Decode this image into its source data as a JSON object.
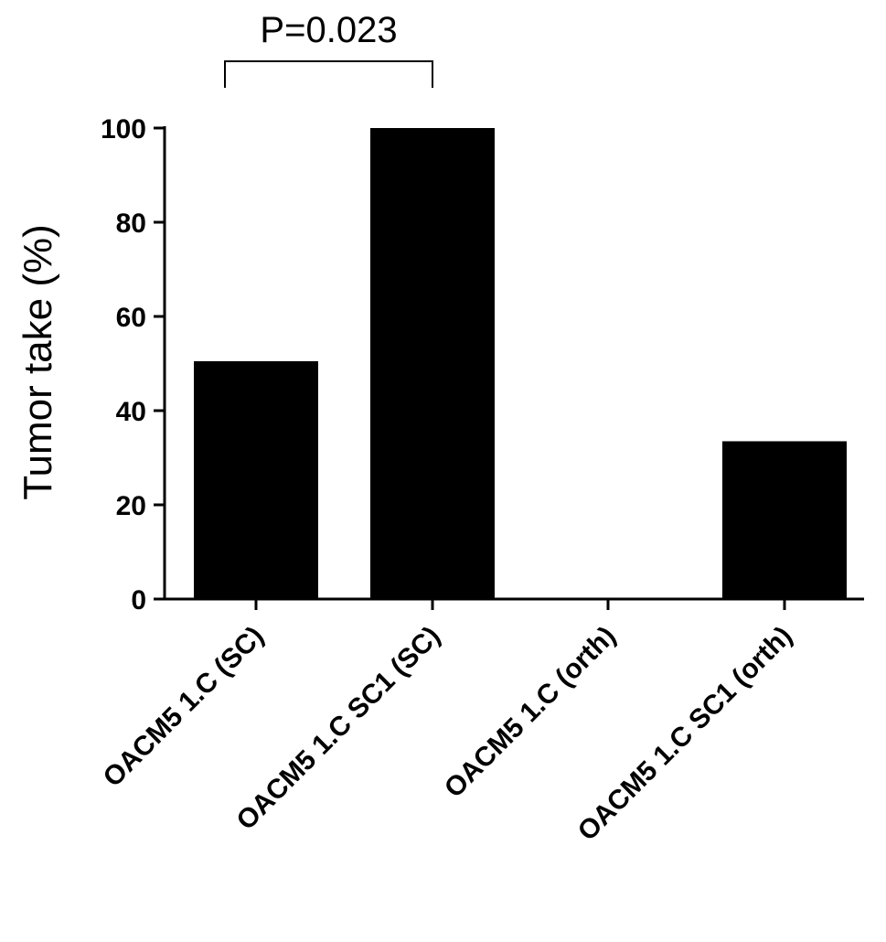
{
  "chart_data": {
    "type": "bar",
    "categories": [
      "OACM5 1.C (SC)",
      "OACM5 1.C SC1 (SC)",
      "OACM5 1.C (orth)",
      "OACM5 1.C SC1 (orth)"
    ],
    "values": [
      50.5,
      100,
      0,
      33.5
    ],
    "title": "",
    "xlabel": "",
    "ylabel": "Tumor take (%)",
    "ylim": [
      0,
      100
    ],
    "yticks": [
      0,
      20,
      40,
      60,
      80,
      100
    ],
    "ytick_labels": [
      "0",
      "20",
      "40",
      "60",
      "80",
      "100"
    ],
    "bar_color": "#000000",
    "grid": false,
    "legend": "none",
    "annotations": [
      {
        "type": "significance-bracket",
        "from_category": 0,
        "to_category": 1,
        "label": "P=0.023"
      }
    ]
  }
}
